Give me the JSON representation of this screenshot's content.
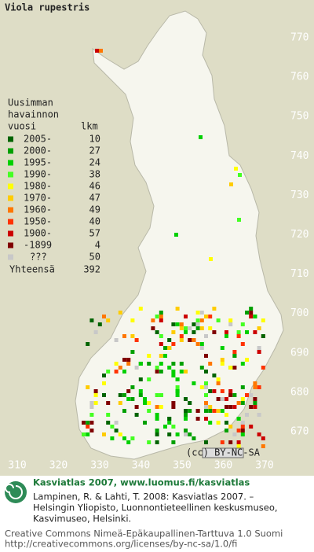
{
  "title": "Viola rupestris",
  "legend": {
    "heading": [
      "Uusimman",
      "havainnon",
      "vuosi"
    ],
    "count_heading": "lkm",
    "rows": [
      {
        "label": "2005-",
        "count": 10,
        "color": "#006400"
      },
      {
        "label": "2000-",
        "count": 27,
        "color": "#00a000"
      },
      {
        "label": "1995-",
        "count": 24,
        "color": "#00d000"
      },
      {
        "label": "1990-",
        "count": 38,
        "color": "#44ff22"
      },
      {
        "label": "1980-",
        "count": 46,
        "color": "#ffff00"
      },
      {
        "label": "1970-",
        "count": 47,
        "color": "#ffcc00"
      },
      {
        "label": "1960-",
        "count": 49,
        "color": "#ff7700"
      },
      {
        "label": "1950-",
        "count": 40,
        "color": "#ff3300"
      },
      {
        "label": "1900-",
        "count": 57,
        "color": "#cc0000"
      },
      {
        "label": "-1899",
        "count": 4,
        "color": "#800000"
      },
      {
        "label": "???",
        "count": 50,
        "color": "#c8c8c8"
      }
    ],
    "total": {
      "label": "Yhteensä",
      "count": 392
    }
  },
  "map": {
    "y_labels": [
      770,
      760,
      750,
      740,
      730,
      720,
      710,
      700,
      690,
      680,
      670
    ],
    "x_labels": [
      310,
      320,
      330,
      340,
      350,
      360,
      370
    ],
    "badge": "(cc) BY-NC-SA"
  },
  "footer": {
    "heading": "Kasviatlas 2007, www.luomus.fi/kasviatlas",
    "citation": [
      "Lampinen, R. & Lahti, T. 2008: Kasviatlas 2007. –",
      "Helsingin Yliopisto, Luonnontieteellinen keskusmuseo,",
      "Kasvimuseo, Helsinki."
    ],
    "license": [
      "Creative Commons Nimeä-Epäkaupallinen-Tarttuva 1.0 Suomi",
      "http://creativecommons.org/licenses/by-nc-sa/1.0/fi"
    ]
  }
}
